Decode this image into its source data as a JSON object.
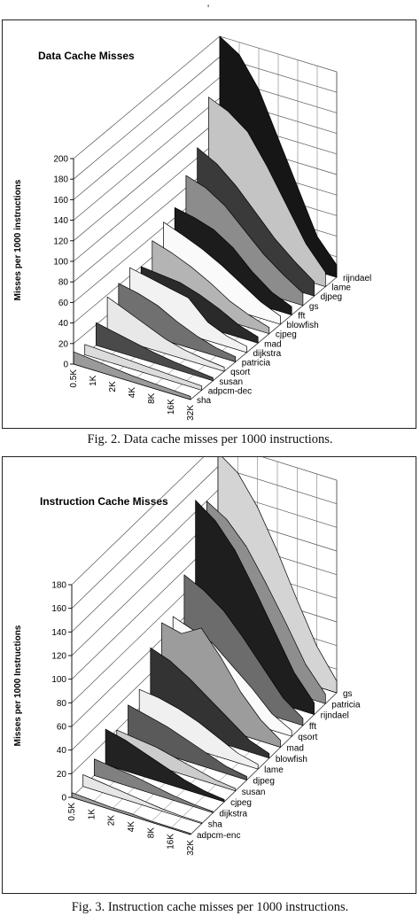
{
  "top_mark": "'",
  "captions": {
    "fig2": "Fig. 2. Data cache misses per 1000 instructions.",
    "fig3": "Fig. 3. Instruction cache misses per 1000 instructions."
  },
  "chart_data": [
    {
      "type": "area",
      "title": "Data Cache Misses",
      "ylabel": "Misses per 1000 instructions",
      "ylim": [
        0,
        200
      ],
      "yticks": [
        0,
        20,
        40,
        60,
        80,
        100,
        120,
        140,
        160,
        180,
        200
      ],
      "categories": [
        "0.5K",
        "1K",
        "2K",
        "4K",
        "8K",
        "16K",
        "32K"
      ],
      "series_labels": [
        "sha",
        "adpcm-dec",
        "susan",
        "qsort",
        "patricia",
        "dijkstra",
        "mad",
        "cjpeg",
        "blowfish",
        "fft",
        "gs",
        "djpeg",
        "lame",
        "rijndael"
      ],
      "series": [
        {
          "name": "sha",
          "values": [
            12,
            10,
            8,
            6,
            5,
            4,
            3
          ],
          "color": "#9a9a9a"
        },
        {
          "name": "adpcm-dec",
          "values": [
            10,
            9,
            8,
            7,
            6,
            5,
            4
          ],
          "color": "#dcdcdc"
        },
        {
          "name": "susan",
          "values": [
            22,
            18,
            14,
            10,
            7,
            5,
            3
          ],
          "color": "#4a4a4a"
        },
        {
          "name": "qsort",
          "values": [
            38,
            30,
            22,
            14,
            9,
            6,
            4
          ],
          "color": "#e8e8e8"
        },
        {
          "name": "patricia",
          "values": [
            42,
            38,
            32,
            22,
            14,
            8,
            5
          ],
          "color": "#707070"
        },
        {
          "name": "dijkstra",
          "values": [
            48,
            44,
            40,
            36,
            18,
            10,
            6
          ],
          "color": "#f2f2f2"
        },
        {
          "name": "mad",
          "values": [
            40,
            38,
            36,
            30,
            22,
            12,
            6
          ],
          "color": "#2a2a2a"
        },
        {
          "name": "cjpeg",
          "values": [
            56,
            50,
            42,
            32,
            20,
            12,
            6
          ],
          "color": "#b4b4b4"
        },
        {
          "name": "blowfish",
          "values": [
            65,
            58,
            50,
            40,
            28,
            16,
            8
          ],
          "color": "#fafafa"
        },
        {
          "name": "fft",
          "values": [
            70,
            66,
            60,
            48,
            30,
            16,
            8
          ],
          "color": "#1c1c1c"
        },
        {
          "name": "gs",
          "values": [
            92,
            86,
            74,
            56,
            38,
            24,
            12
          ],
          "color": "#8c8c8c"
        },
        {
          "name": "djpeg",
          "values": [
            110,
            100,
            84,
            64,
            44,
            28,
            14
          ],
          "color": "#3a3a3a"
        },
        {
          "name": "lame",
          "values": [
            150,
            142,
            128,
            100,
            68,
            36,
            14
          ],
          "color": "#c4c4c4"
        },
        {
          "name": "rijndael",
          "values": [
            200,
            188,
            160,
            118,
            76,
            34,
            12
          ],
          "color": "#161616"
        }
      ]
    },
    {
      "type": "area",
      "title": "Instruction Cache Misses",
      "ylabel": "Misses per 1000 Instructions",
      "ylim": [
        0,
        180
      ],
      "yticks": [
        0,
        20,
        40,
        60,
        80,
        100,
        120,
        140,
        160,
        180
      ],
      "categories": [
        "0.5K",
        "1K",
        "2K",
        "4K",
        "8K",
        "16K",
        "32K"
      ],
      "series_labels": [
        "adpcm-enc",
        "sha",
        "dijkstra",
        "cjpeg",
        "susan",
        "djpeg",
        "lame",
        "blowfish",
        "mad",
        "qsort",
        "fft",
        "rijndael",
        "patricia",
        "gs"
      ],
      "series": [
        {
          "name": "adpcm-enc",
          "values": [
            4,
            3,
            2,
            2,
            1,
            1,
            1
          ],
          "color": "#a0a0a0"
        },
        {
          "name": "sha",
          "values": [
            10,
            8,
            6,
            4,
            2,
            1,
            1
          ],
          "color": "#e6e6e6"
        },
        {
          "name": "dijkstra",
          "values": [
            14,
            12,
            10,
            7,
            4,
            2,
            1
          ],
          "color": "#808080"
        },
        {
          "name": "cjpeg",
          "values": [
            30,
            26,
            20,
            14,
            8,
            4,
            2
          ],
          "color": "#222222"
        },
        {
          "name": "susan",
          "values": [
            20,
            18,
            16,
            12,
            8,
            4,
            2
          ],
          "color": "#cccccc"
        },
        {
          "name": "djpeg",
          "values": [
            32,
            28,
            24,
            18,
            12,
            6,
            3
          ],
          "color": "#5a5a5a"
        },
        {
          "name": "lame",
          "values": [
            36,
            34,
            30,
            24,
            16,
            8,
            4
          ],
          "color": "#f0f0f0"
        },
        {
          "name": "blowfish",
          "values": [
            62,
            56,
            46,
            34,
            22,
            10,
            4
          ],
          "color": "#333333"
        },
        {
          "name": "mad",
          "values": [
            74,
            70,
            80,
            60,
            36,
            18,
            6
          ],
          "color": "#9c9c9c"
        },
        {
          "name": "qsort",
          "values": [
            70,
            64,
            58,
            44,
            30,
            14,
            5
          ],
          "color": "#fafafa"
        },
        {
          "name": "fft",
          "values": [
            96,
            88,
            76,
            58,
            38,
            18,
            6
          ],
          "color": "#6c6c6c"
        },
        {
          "name": "rijndael",
          "values": [
            150,
            138,
            118,
            90,
            60,
            30,
            10
          ],
          "color": "#1e1e1e"
        },
        {
          "name": "patricia",
          "values": [
            140,
            130,
            112,
            86,
            58,
            28,
            8
          ],
          "color": "#8e8e8e"
        },
        {
          "name": "gs",
          "values": [
            172,
            160,
            136,
            104,
            68,
            34,
            10
          ],
          "color": "#d4d4d4"
        }
      ]
    }
  ]
}
